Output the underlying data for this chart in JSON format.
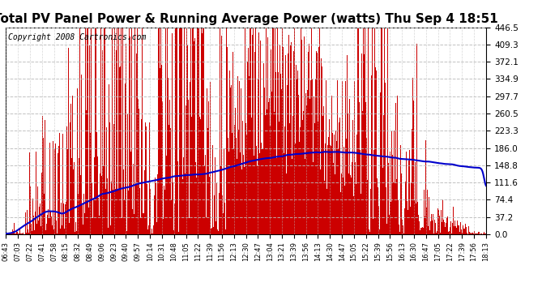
{
  "title": "Total PV Panel Power & Running Average Power (watts) Thu Sep 4 18:51",
  "copyright": "Copyright 2008 Cartronics.com",
  "y_max": 446.5,
  "y_min": 0.0,
  "y_ticks": [
    0.0,
    37.2,
    74.4,
    111.6,
    148.8,
    186.0,
    223.3,
    260.5,
    297.7,
    334.9,
    372.1,
    409.3,
    446.5
  ],
  "x_labels": [
    "06:43",
    "07:03",
    "07:22",
    "07:41",
    "07:58",
    "08:15",
    "08:32",
    "08:49",
    "09:06",
    "09:23",
    "09:40",
    "09:57",
    "10:14",
    "10:31",
    "10:48",
    "11:05",
    "11:22",
    "11:39",
    "11:56",
    "12:13",
    "12:30",
    "12:47",
    "13:04",
    "13:21",
    "13:39",
    "13:56",
    "14:13",
    "14:30",
    "14:47",
    "15:05",
    "15:22",
    "15:39",
    "15:56",
    "16:13",
    "16:30",
    "16:47",
    "17:05",
    "17:22",
    "17:39",
    "17:56",
    "18:13"
  ],
  "bar_color": "#cc0000",
  "avg_line_color": "#0000cc",
  "background_color": "#ffffff",
  "grid_color": "#bbbbbb",
  "title_fontsize": 11,
  "copyright_fontsize": 7
}
